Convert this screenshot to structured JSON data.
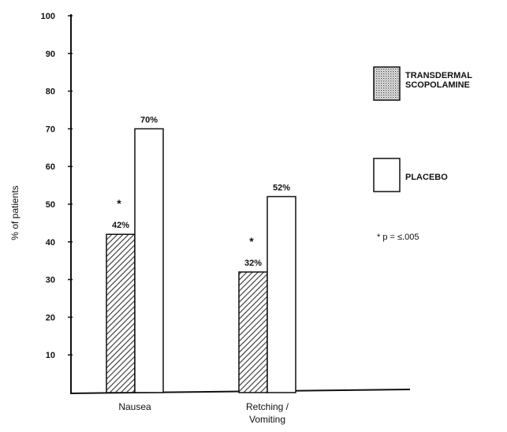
{
  "chart_data": {
    "type": "bar",
    "categories": [
      "Nausea",
      "Retching / Vomiting"
    ],
    "category_lines": [
      [
        "Nausea"
      ],
      [
        "Retching /",
        "Vomiting"
      ]
    ],
    "series": [
      {
        "name": "TRANSDERMAL SCOPOLAMINE",
        "name_lines": [
          "TRANSDERMAL",
          "SCOPOLAMINE"
        ],
        "values": [
          42,
          32
        ],
        "data_labels": [
          "42%",
          "32%"
        ],
        "significance_marks": [
          "*",
          "*"
        ],
        "pattern": "hatched"
      },
      {
        "name": "PLACEBO",
        "name_lines": [
          "PLACEBO"
        ],
        "values": [
          70,
          52
        ],
        "data_labels": [
          "70%",
          "52%"
        ],
        "pattern": "open"
      }
    ],
    "ylabel": "% of patients",
    "xlabel": "",
    "title": "",
    "ylim": [
      0,
      100
    ],
    "yticks": [
      10,
      20,
      30,
      40,
      50,
      60,
      70,
      80,
      90,
      100
    ],
    "legend_position": "right",
    "grid": false,
    "annotation": {
      "prefix": "* p = ",
      "value": "≤.005"
    }
  }
}
